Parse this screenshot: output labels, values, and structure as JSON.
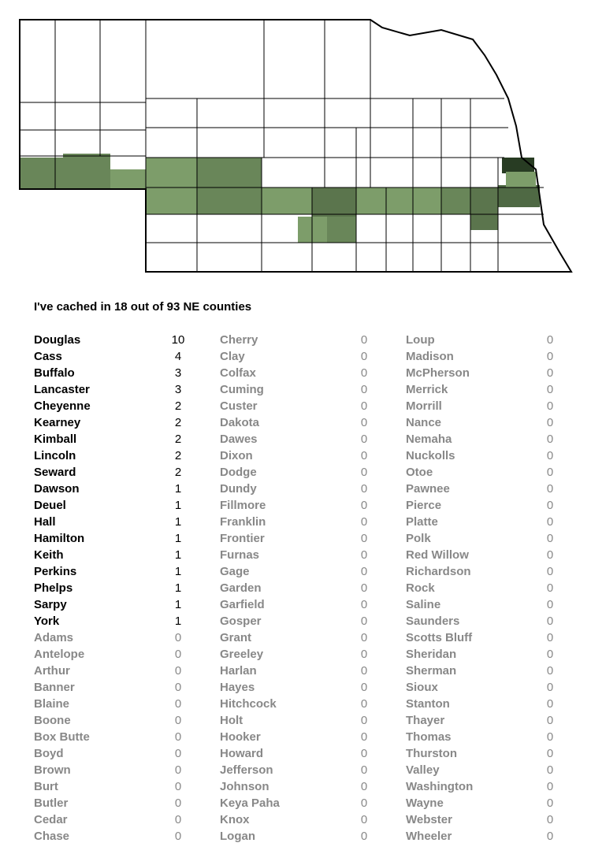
{
  "title": "I've cached in 18 out of 93 NE counties",
  "counties": [
    {
      "name": "Douglas",
      "count": 10
    },
    {
      "name": "Cass",
      "count": 4
    },
    {
      "name": "Buffalo",
      "count": 3
    },
    {
      "name": "Lancaster",
      "count": 3
    },
    {
      "name": "Cheyenne",
      "count": 2
    },
    {
      "name": "Kearney",
      "count": 2
    },
    {
      "name": "Kimball",
      "count": 2
    },
    {
      "name": "Lincoln",
      "count": 2
    },
    {
      "name": "Seward",
      "count": 2
    },
    {
      "name": "Dawson",
      "count": 1
    },
    {
      "name": "Deuel",
      "count": 1
    },
    {
      "name": "Hall",
      "count": 1
    },
    {
      "name": "Hamilton",
      "count": 1
    },
    {
      "name": "Keith",
      "count": 1
    },
    {
      "name": "Perkins",
      "count": 1
    },
    {
      "name": "Phelps",
      "count": 1
    },
    {
      "name": "Sarpy",
      "count": 1
    },
    {
      "name": "York",
      "count": 1
    },
    {
      "name": "Adams",
      "count": 0
    },
    {
      "name": "Antelope",
      "count": 0
    },
    {
      "name": "Arthur",
      "count": 0
    },
    {
      "name": "Banner",
      "count": 0
    },
    {
      "name": "Blaine",
      "count": 0
    },
    {
      "name": "Boone",
      "count": 0
    },
    {
      "name": "Box Butte",
      "count": 0
    },
    {
      "name": "Boyd",
      "count": 0
    },
    {
      "name": "Brown",
      "count": 0
    },
    {
      "name": "Burt",
      "count": 0
    },
    {
      "name": "Butler",
      "count": 0
    },
    {
      "name": "Cedar",
      "count": 0
    },
    {
      "name": "Chase",
      "count": 0
    },
    {
      "name": "Cherry",
      "count": 0
    },
    {
      "name": "Clay",
      "count": 0
    },
    {
      "name": "Colfax",
      "count": 0
    },
    {
      "name": "Cuming",
      "count": 0
    },
    {
      "name": "Custer",
      "count": 0
    },
    {
      "name": "Dakota",
      "count": 0
    },
    {
      "name": "Dawes",
      "count": 0
    },
    {
      "name": "Dixon",
      "count": 0
    },
    {
      "name": "Dodge",
      "count": 0
    },
    {
      "name": "Dundy",
      "count": 0
    },
    {
      "name": "Fillmore",
      "count": 0
    },
    {
      "name": "Franklin",
      "count": 0
    },
    {
      "name": "Frontier",
      "count": 0
    },
    {
      "name": "Furnas",
      "count": 0
    },
    {
      "name": "Gage",
      "count": 0
    },
    {
      "name": "Garden",
      "count": 0
    },
    {
      "name": "Garfield",
      "count": 0
    },
    {
      "name": "Gosper",
      "count": 0
    },
    {
      "name": "Grant",
      "count": 0
    },
    {
      "name": "Greeley",
      "count": 0
    },
    {
      "name": "Harlan",
      "count": 0
    },
    {
      "name": "Hayes",
      "count": 0
    },
    {
      "name": "Hitchcock",
      "count": 0
    },
    {
      "name": "Holt",
      "count": 0
    },
    {
      "name": "Hooker",
      "count": 0
    },
    {
      "name": "Howard",
      "count": 0
    },
    {
      "name": "Jefferson",
      "count": 0
    },
    {
      "name": "Johnson",
      "count": 0
    },
    {
      "name": "Keya Paha",
      "count": 0
    },
    {
      "name": "Knox",
      "count": 0
    },
    {
      "name": "Logan",
      "count": 0
    },
    {
      "name": "Loup",
      "count": 0
    },
    {
      "name": "Madison",
      "count": 0
    },
    {
      "name": "McPherson",
      "count": 0
    },
    {
      "name": "Merrick",
      "count": 0
    },
    {
      "name": "Morrill",
      "count": 0
    },
    {
      "name": "Nance",
      "count": 0
    },
    {
      "name": "Nemaha",
      "count": 0
    },
    {
      "name": "Nuckolls",
      "count": 0
    },
    {
      "name": "Otoe",
      "count": 0
    },
    {
      "name": "Pawnee",
      "count": 0
    },
    {
      "name": "Pierce",
      "count": 0
    },
    {
      "name": "Platte",
      "count": 0
    },
    {
      "name": "Polk",
      "count": 0
    },
    {
      "name": "Red Willow",
      "count": 0
    },
    {
      "name": "Richardson",
      "count": 0
    },
    {
      "name": "Rock",
      "count": 0
    },
    {
      "name": "Saline",
      "count": 0
    },
    {
      "name": "Saunders",
      "count": 0
    },
    {
      "name": "Scotts Bluff",
      "count": 0
    },
    {
      "name": "Sheridan",
      "count": 0
    },
    {
      "name": "Sherman",
      "count": 0
    },
    {
      "name": "Sioux",
      "count": 0
    },
    {
      "name": "Stanton",
      "count": 0
    },
    {
      "name": "Thayer",
      "count": 0
    },
    {
      "name": "Thomas",
      "count": 0
    },
    {
      "name": "Thurston",
      "count": 0
    },
    {
      "name": "Valley",
      "count": 0
    },
    {
      "name": "Washington",
      "count": 0
    },
    {
      "name": "Wayne",
      "count": 0
    },
    {
      "name": "Webster",
      "count": 0
    },
    {
      "name": "Wheeler",
      "count": 0
    }
  ]
}
